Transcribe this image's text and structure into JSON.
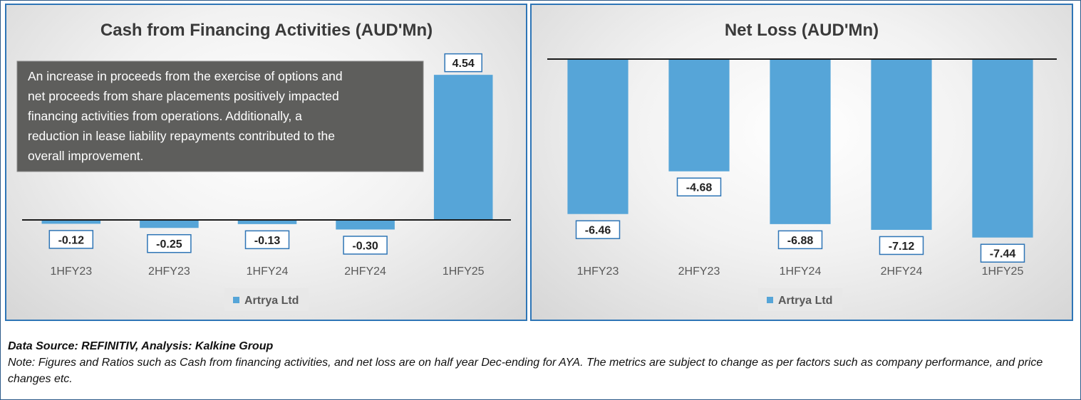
{
  "chart_data": [
    {
      "type": "bar",
      "title": "Cash from Financing Activities (AUD'Mn)",
      "categories": [
        "1HFY23",
        "2HFY23",
        "1HFY24",
        "2HFY24",
        "1HFY25"
      ],
      "series": [
        {
          "name": "Artrya Ltd",
          "values": [
            -0.12,
            -0.25,
            -0.13,
            -0.3,
            4.54
          ]
        }
      ],
      "data_labels": [
        "-0.12",
        "-0.25",
        "-0.13",
        "-0.30",
        "4.54"
      ],
      "annotation": "An increase in proceeds from the exercise of options and net proceeds from share placements positively impacted financing activities from operations. Additionally, a reduction in lease liability repayments contributed to the overall improvement.",
      "legend_position": "bottom",
      "grid": false,
      "bar_color": "#56a5d8"
    },
    {
      "type": "bar",
      "title": "Net Loss (AUD'Mn)",
      "categories": [
        "1HFY23",
        "2HFY23",
        "1HFY24",
        "2HFY24",
        "1HFY25"
      ],
      "series": [
        {
          "name": "Artrya Ltd",
          "values": [
            -6.46,
            -4.68,
            -6.88,
            -7.12,
            -7.44
          ]
        }
      ],
      "data_labels": [
        "-6.46",
        "-4.68",
        "-6.88",
        "-7.12",
        "-7.44"
      ],
      "legend_position": "bottom",
      "grid": false,
      "bar_color": "#56a5d8"
    }
  ],
  "footer": {
    "source": "Data Source: REFINITIV, Analysis: Kalkine Group",
    "note": "Note: Figures and Ratios such as Cash from financing activities, and net loss  are on half year Dec-ending for AYA. The metrics are subject to change as per factors such as company performance, and price changes etc."
  }
}
